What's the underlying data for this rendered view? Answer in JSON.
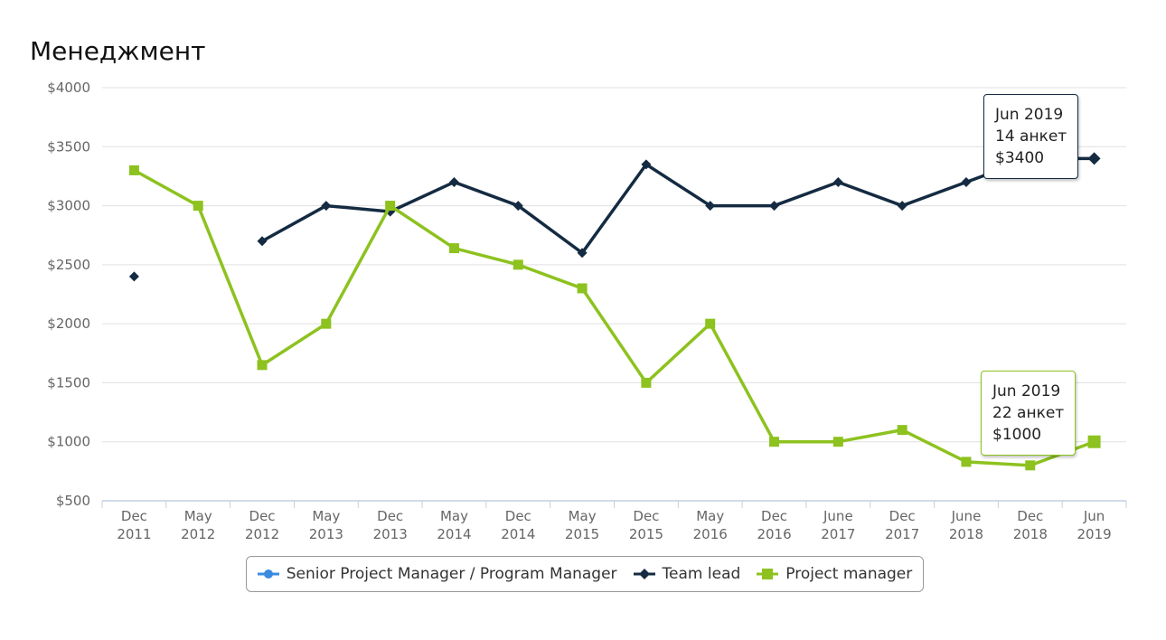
{
  "title": "Менеджмент",
  "chart_data": {
    "type": "line",
    "categories": [
      "Dec 2011",
      "May 2012",
      "Dec 2012",
      "May 2013",
      "Dec 2013",
      "May 2014",
      "Dec 2014",
      "May 2015",
      "Dec 2015",
      "May 2016",
      "Dec 2016",
      "June 2017",
      "Dec 2017",
      "June 2018",
      "Dec 2018",
      "Jun 2019"
    ],
    "y_ticks": [
      "$500",
      "$1000",
      "$1500",
      "$2000",
      "$2500",
      "$3000",
      "$3500",
      "$4000"
    ],
    "ylim": [
      500,
      4000
    ],
    "grid": true,
    "legend_position": "bottom",
    "series": [
      {
        "name": "Senior Project Manager / Program Manager",
        "color": "#3a8be0",
        "marker": "circle",
        "values": [
          null,
          null,
          null,
          null,
          null,
          null,
          null,
          null,
          null,
          null,
          null,
          null,
          null,
          null,
          null,
          null
        ]
      },
      {
        "name": "Team lead",
        "color": "#142b42",
        "marker": "diamond",
        "values": [
          2400,
          null,
          2700,
          3000,
          2950,
          3200,
          3000,
          2600,
          3350,
          3000,
          3000,
          3200,
          3000,
          3200,
          3400,
          3400
        ]
      },
      {
        "name": "Project manager",
        "color": "#8dc21f",
        "marker": "square",
        "values": [
          3300,
          3000,
          1650,
          2000,
          3000,
          2640,
          2500,
          2300,
          1500,
          2000,
          1000,
          1000,
          1100,
          830,
          800,
          1000
        ]
      }
    ]
  },
  "tooltips": [
    {
      "date": "Jun 2019",
      "count": "14 анкет",
      "value": "$3400"
    },
    {
      "date": "Jun 2019",
      "count": "22 анкет",
      "value": "$1000"
    }
  ]
}
